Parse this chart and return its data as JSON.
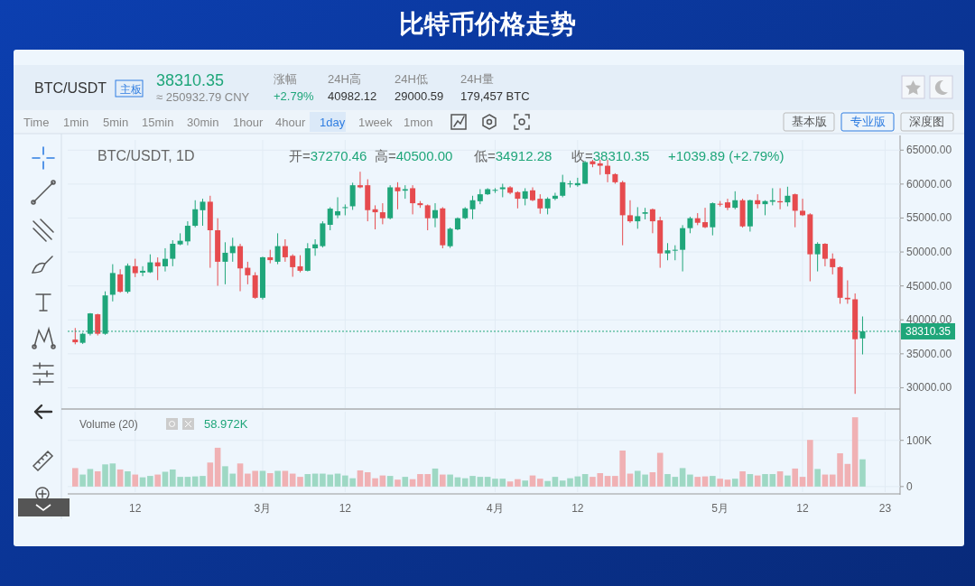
{
  "chart_data": [
    {
      "type": "candlestick",
      "title": "比特币价格走势",
      "annotations": [
        "BTC/USDT",
        "主板",
        "38310.35",
        "≈ 250932.79 CNY",
        "涨幅",
        "+2.79%",
        "24H高",
        "40982.12",
        "24H低",
        "29000.59",
        "24H量",
        "179,457 BTC",
        "Time",
        "1min",
        "5min",
        "15min",
        "30min",
        "1hour",
        "4hour",
        "1day",
        "1week",
        "1mon",
        "基本版",
        "专业版",
        "深度图",
        "BTC/USDT, 1D",
        "开=37270.46",
        "高=40500.00",
        "低=34912.28",
        "收=38310.35",
        "+1039.89 (+2.79%)"
      ],
      "x": [
        "--02-04",
        "--02-05",
        "--02-06",
        "--02-07",
        "--02-08",
        "--02-09",
        "--02-10",
        "--02-11",
        "--02-12",
        "--02-13",
        "--02-14",
        "--02-15",
        "--02-16",
        "--02-17",
        "--02-18",
        "--02-19",
        "--02-20",
        "--02-21",
        "--02-22",
        "--02-23",
        "--02-24",
        "--02-25",
        "--02-26",
        "--02-27",
        "--02-28",
        "--03-01",
        "--03-02",
        "--03-03",
        "--03-04",
        "--03-05",
        "--03-06",
        "--03-07",
        "--03-08",
        "--03-09",
        "--03-10",
        "--03-11",
        "--03-12",
        "--03-13",
        "--03-14",
        "--03-15",
        "--03-16",
        "--03-17",
        "--03-18",
        "--03-19",
        "--03-20",
        "--03-21",
        "--03-22",
        "--03-23",
        "--03-24",
        "--03-25",
        "--03-26",
        "--03-27",
        "--03-28",
        "--03-29",
        "--03-30",
        "--03-31",
        "--04-01",
        "--04-02",
        "--04-03",
        "--04-04",
        "--04-05",
        "--04-06",
        "--04-07",
        "--04-08",
        "--04-09",
        "--04-10",
        "--04-11",
        "--04-12",
        "--04-13",
        "--04-14",
        "--04-15",
        "--04-16",
        "--04-17",
        "--04-18",
        "--04-19",
        "--04-20",
        "--04-21",
        "--04-22",
        "--04-23",
        "--04-24",
        "--04-25",
        "--04-26",
        "--04-27",
        "--04-28",
        "--04-29",
        "--04-30",
        "--05-01",
        "--05-02",
        "--05-03",
        "--05-04",
        "--05-05",
        "--05-06",
        "--05-07",
        "--05-08",
        "--05-09",
        "--05-10",
        "--05-11",
        "--05-12",
        "--05-13",
        "--05-14",
        "--05-15",
        "--05-16",
        "--05-17",
        "--05-18",
        "--05-19",
        "--05-20"
      ],
      "ohlc": [
        [
          37100,
          38800,
          36400,
          36700
        ],
        [
          36620,
          38100,
          36450,
          37950
        ],
        [
          37950,
          41000,
          37700,
          40950
        ],
        [
          40820,
          40900,
          37700,
          37950
        ],
        [
          37950,
          44200,
          37800,
          43600
        ],
        [
          43700,
          48200,
          42720,
          46900
        ],
        [
          46700,
          47450,
          44000,
          44140
        ],
        [
          44140,
          48300,
          43900,
          47980
        ],
        [
          47900,
          49000,
          46300,
          46880
        ],
        [
          46960,
          47900,
          46430,
          47230
        ],
        [
          47010,
          49650,
          46900,
          48470
        ],
        [
          48470,
          49200,
          45850,
          47890
        ],
        [
          47890,
          50550,
          47130,
          48990
        ],
        [
          49000,
          51730,
          47900,
          51210
        ],
        [
          51120,
          52750,
          50990,
          51650
        ],
        [
          51560,
          54520,
          50990,
          53860
        ],
        [
          53860,
          57620,
          53640,
          56290
        ],
        [
          56150,
          57840,
          53860,
          57400
        ],
        [
          57400,
          58280,
          47670,
          53200
        ],
        [
          53200,
          54970,
          45020,
          48560
        ],
        [
          48560,
          51430,
          45240,
          49880
        ],
        [
          49830,
          52100,
          48560,
          50860
        ],
        [
          50860,
          51210,
          44220,
          47580
        ],
        [
          47670,
          48560,
          45240,
          46570
        ],
        [
          46570,
          47010,
          43100,
          43250
        ],
        [
          43250,
          49300,
          43000,
          49220
        ],
        [
          49220,
          50320,
          48330,
          48800
        ],
        [
          48560,
          52750,
          48200,
          50860
        ],
        [
          50860,
          51870,
          48560,
          49220
        ],
        [
          49440,
          49660,
          46350,
          47760
        ],
        [
          47890,
          49520,
          47000,
          47230
        ],
        [
          47230,
          51300,
          47140,
          50540
        ],
        [
          50540,
          51870,
          49440,
          51120
        ],
        [
          50860,
          54520,
          50660,
          54210
        ],
        [
          54000,
          56600,
          53200,
          56380
        ],
        [
          55400,
          58060,
          54970,
          56000
        ],
        [
          56500,
          57000,
          55400,
          56600
        ],
        [
          56730,
          60200,
          56200,
          59830
        ],
        [
          59830,
          61820,
          59390,
          59520
        ],
        [
          59830,
          60710,
          54520,
          56160
        ],
        [
          56290,
          56870,
          53330,
          55850
        ],
        [
          55850,
          57180,
          54080,
          54970
        ],
        [
          54970,
          59830,
          54800,
          59520
        ],
        [
          59520,
          60270,
          56290,
          58940
        ],
        [
          59030,
          59830,
          57840,
          59250
        ],
        [
          59390,
          59830,
          55540,
          57180
        ],
        [
          57180,
          57500,
          56500,
          56900
        ],
        [
          56870,
          57000,
          53200,
          54970
        ],
        [
          54970,
          57180,
          53640,
          56160
        ],
        [
          56420,
          56600,
          50540,
          50990
        ],
        [
          50850,
          53600,
          50600,
          53420
        ],
        [
          53330,
          55100,
          53200,
          54970
        ],
        [
          54970,
          56600,
          54830,
          56420
        ],
        [
          56290,
          58280,
          54830,
          57620
        ],
        [
          57480,
          59250,
          57040,
          58500
        ],
        [
          58500,
          59400,
          58400,
          59250
        ],
        [
          59080,
          59400,
          58700,
          59150
        ],
        [
          59250,
          60050,
          58060,
          59520
        ],
        [
          59520,
          59700,
          58500,
          58720
        ],
        [
          58810,
          58940,
          56420,
          57840
        ],
        [
          57840,
          59390,
          56870,
          58940
        ],
        [
          59080,
          59520,
          57480,
          57620
        ],
        [
          57840,
          58500,
          55630,
          56420
        ],
        [
          56420,
          58060,
          55540,
          57840
        ],
        [
          57840,
          58720,
          57620,
          58280
        ],
        [
          58280,
          61370,
          58060,
          60270
        ],
        [
          59960,
          60500,
          59500,
          60100
        ],
        [
          59830,
          60930,
          59610,
          60140
        ],
        [
          60050,
          63400,
          60000,
          63230
        ],
        [
          63360,
          63580,
          62480,
          62920
        ],
        [
          63050,
          63580,
          61370,
          62700
        ],
        [
          62700,
          63580,
          60270,
          61460
        ],
        [
          61460,
          61600,
          60050,
          60270
        ],
        [
          60270,
          60490,
          50990,
          55410
        ],
        [
          55410,
          57620,
          54300,
          54520
        ],
        [
          54520,
          56600,
          53420,
          55270
        ],
        [
          55630,
          56500,
          54800,
          55850
        ],
        [
          56290,
          56400,
          52760,
          54520
        ],
        [
          54660,
          55190,
          47670,
          49790
        ],
        [
          49790,
          51300,
          48780,
          50240
        ],
        [
          50190,
          50990,
          48780,
          50320
        ],
        [
          50320,
          53950,
          47140,
          53510
        ],
        [
          53510,
          55190,
          52760,
          54970
        ],
        [
          54970,
          55720,
          53950,
          54300
        ],
        [
          54390,
          56510,
          53510,
          53640
        ],
        [
          53640,
          57300,
          52450,
          57180
        ],
        [
          57100,
          57500,
          56700,
          57050
        ],
        [
          57310,
          57840,
          56160,
          56510
        ],
        [
          56510,
          58940,
          56290,
          57620
        ],
        [
          57620,
          57840,
          53600,
          53770
        ],
        [
          53770,
          57700,
          53000,
          57620
        ],
        [
          57620,
          58500,
          56420,
          57040
        ],
        [
          57040,
          57620,
          55410,
          57490
        ],
        [
          57400,
          59390,
          56870,
          57620
        ],
        [
          57480,
          59390,
          56290,
          57310
        ],
        [
          57310,
          59610,
          56730,
          58280
        ],
        [
          58500,
          58600,
          53640,
          56070
        ],
        [
          56070,
          57840,
          55300,
          55410
        ],
        [
          55540,
          55700,
          45680,
          49660
        ],
        [
          49660,
          51430,
          47140,
          51200
        ],
        [
          51200,
          51300,
          47890,
          49000
        ],
        [
          49000,
          49790,
          46700,
          47760
        ],
        [
          47760,
          47890,
          42370,
          43250
        ],
        [
          43250,
          45820,
          42370,
          43030
        ],
        [
          43030,
          43890,
          29100,
          37150
        ],
        [
          37270.46,
          40500,
          34912.28,
          38310.35
        ]
      ],
      "xticks": [
        {
          "value": "--02-12",
          "label": null
        },
        {
          "value": "--03-01",
          "label": null
        },
        {
          "value": "--03-12",
          "label": null
        },
        {
          "value": "--04-01",
          "label": null
        },
        {
          "value": "--04-12",
          "label": null
        },
        {
          "value": "--05-01",
          "label": null
        },
        {
          "value": "--05-12",
          "label": null
        },
        {
          "value": "--05-23",
          "label": null
        }
      ],
      "colors": [
        "#e64b4e",
        "#1fa67a",
        "#1fa67a",
        "#e64b4e",
        "#1fa67a",
        "#1fa67a",
        "#e64b4e",
        "#1fa67a",
        "#e64b4e",
        "#1fa67a",
        "#1fa67a",
        "#e64b4e",
        "#1fa67a",
        "#1fa67a",
        "#1fa67a",
        "#1fa67a",
        "#1fa67a",
        "#1fa67a",
        "#e64b4e",
        "#e64b4e",
        "#1fa67a",
        "#1fa67a",
        "#e64b4e",
        "#e64b4e",
        "#e64b4e",
        "#1fa67a",
        "#e64b4e",
        "#1fa67a",
        "#e64b4e",
        "#e64b4e",
        "#e64b4e",
        "#1fa67a",
        "#1fa67a",
        "#1fa67a",
        "#1fa67a",
        "#1fa67a",
        "#1fa67a",
        "#1fa67a",
        "#e64b4e",
        "#e64b4e",
        "#e64b4e",
        "#e64b4e",
        "#1fa67a",
        "#e64b4e",
        "#1fa67a",
        "#e64b4e",
        "#e64b4e",
        "#e64b4e",
        "#1fa67a",
        "#e64b4e",
        "#1fa67a",
        "#1fa67a",
        "#1fa67a",
        "#1fa67a",
        "#1fa67a",
        "#1fa67a",
        "#1fa67a",
        "#1fa67a",
        "#e64b4e",
        "#e64b4e",
        "#1fa67a",
        "#e64b4e",
        "#e64b4e",
        "#1fa67a",
        "#1fa67a",
        "#1fa67a",
        "#1fa67a",
        "#1fa67a",
        "#1fa67a",
        "#e64b4e",
        "#e64b4e",
        "#e64b4e",
        "#e64b4e",
        "#e64b4e",
        "#e64b4e",
        "#1fa67a",
        "#1fa67a",
        "#e64b4e",
        "#e64b4e",
        "#1fa67a",
        "#1fa67a",
        "#1fa67a",
        "#1fa67a",
        "#e64b4e",
        "#e64b4e",
        "#1fa67a",
        "#e64b4e",
        "#e64b4e",
        "#1fa67a",
        "#e64b4e",
        "#1fa67a",
        "#e64b4e",
        "#1fa67a",
        "#1fa67a",
        "#e64b4e",
        "#1fa67a",
        "#e64b4e",
        "#e64b4e",
        "#e64b4e",
        "#1fa67a",
        "#e64b4e",
        "#e64b4e",
        "#e64b4e",
        "#e64b4e",
        "#e64b4e",
        "#1fa67a"
      ],
      "xlim": [
        "--02-03",
        "--05-25"
      ],
      "ylim": [
        27000,
        66500
      ],
      "yticks": [
        {
          "value": 30000,
          "label": "30000.00"
        },
        {
          "value": 35000,
          "label": "35000.00"
        },
        {
          "value": 40000,
          "label": "40000.00"
        },
        {
          "value": 45000,
          "label": "45000.00"
        },
        {
          "value": 50000,
          "label": "50000.00"
        },
        {
          "value": 55000,
          "label": "55000.00"
        },
        {
          "value": 60000,
          "label": "60000.00"
        },
        {
          "value": 65000,
          "label": "65000.00"
        }
      ],
      "ref_lines": [
        {
          "axis": "y",
          "value": 38310.35,
          "label": "38310.35",
          "color": "#1fa67a",
          "line_style": "dotted"
        }
      ],
      "grid": true,
      "tick_labels": "y"
    },
    {
      "type": "bar",
      "title": "Volume (20)",
      "annotations": [
        "58.972K"
      ],
      "x": [
        "--02-04",
        "--02-05",
        "--02-06",
        "--02-07",
        "--02-08",
        "--02-09",
        "--02-10",
        "--02-11",
        "--02-12",
        "--02-13",
        "--02-14",
        "--02-15",
        "--02-16",
        "--02-17",
        "--02-18",
        "--02-19",
        "--02-20",
        "--02-21",
        "--02-22",
        "--02-23",
        "--02-24",
        "--02-25",
        "--02-26",
        "--02-27",
        "--02-28",
        "--03-01",
        "--03-02",
        "--03-03",
        "--03-04",
        "--03-05",
        "--03-06",
        "--03-07",
        "--03-08",
        "--03-09",
        "--03-10",
        "--03-11",
        "--03-12",
        "--03-13",
        "--03-14",
        "--03-15",
        "--03-16",
        "--03-17",
        "--03-18",
        "--03-19",
        "--03-20",
        "--03-21",
        "--03-22",
        "--03-23",
        "--03-24",
        "--03-25",
        "--03-26",
        "--03-27",
        "--03-28",
        "--03-29",
        "--03-30",
        "--03-31",
        "--04-01",
        "--04-02",
        "--04-03",
        "--04-04",
        "--04-05",
        "--04-06",
        "--04-07",
        "--04-08",
        "--04-09",
        "--04-10",
        "--04-11",
        "--04-12",
        "--04-13",
        "--04-14",
        "--04-15",
        "--04-16",
        "--04-17",
        "--04-18",
        "--04-19",
        "--04-20",
        "--04-21",
        "--04-22",
        "--04-23",
        "--04-24",
        "--04-25",
        "--04-26",
        "--04-27",
        "--04-28",
        "--04-29",
        "--04-30",
        "--05-01",
        "--05-02",
        "--05-03",
        "--05-04",
        "--05-05",
        "--05-06",
        "--05-07",
        "--05-08",
        "--05-09",
        "--05-10",
        "--05-11",
        "--05-12",
        "--05-13",
        "--05-14",
        "--05-15",
        "--05-16",
        "--05-17",
        "--05-18",
        "--05-19",
        "--05-20"
      ],
      "values": [
        40,
        26,
        38,
        33,
        48,
        50,
        37,
        33,
        26,
        20,
        23,
        26,
        32,
        37,
        21,
        21,
        22,
        23,
        52,
        84,
        44,
        28,
        50,
        28,
        34,
        34,
        29,
        34,
        34,
        28,
        21,
        27,
        28,
        28,
        26,
        28,
        24,
        18,
        35,
        31,
        18,
        24,
        23,
        15,
        21,
        16,
        27,
        27,
        39,
        26,
        26,
        20,
        18,
        23,
        21,
        21,
        17,
        17,
        11,
        16,
        13,
        24,
        17,
        12,
        21,
        13,
        18,
        22,
        27,
        21,
        29,
        23,
        23,
        78,
        28,
        34,
        26,
        31,
        73,
        27,
        21,
        40,
        26,
        21,
        22,
        23,
        17,
        15,
        17,
        33,
        27,
        24,
        27,
        27,
        33,
        24,
        39,
        21,
        101,
        38,
        26,
        26,
        72,
        49,
        150,
        59
      ],
      "colors": [
        "#f0b1b4",
        "#9ed8c4",
        "#9ed8c4",
        "#f0b1b4",
        "#9ed8c4",
        "#9ed8c4",
        "#f0b1b4",
        "#9ed8c4",
        "#f0b1b4",
        "#9ed8c4",
        "#9ed8c4",
        "#f0b1b4",
        "#9ed8c4",
        "#9ed8c4",
        "#9ed8c4",
        "#9ed8c4",
        "#9ed8c4",
        "#9ed8c4",
        "#f0b1b4",
        "#f0b1b4",
        "#9ed8c4",
        "#9ed8c4",
        "#f0b1b4",
        "#f0b1b4",
        "#f0b1b4",
        "#9ed8c4",
        "#f0b1b4",
        "#9ed8c4",
        "#f0b1b4",
        "#f0b1b4",
        "#f0b1b4",
        "#9ed8c4",
        "#9ed8c4",
        "#9ed8c4",
        "#9ed8c4",
        "#9ed8c4",
        "#9ed8c4",
        "#9ed8c4",
        "#f0b1b4",
        "#f0b1b4",
        "#f0b1b4",
        "#f0b1b4",
        "#9ed8c4",
        "#f0b1b4",
        "#9ed8c4",
        "#f0b1b4",
        "#f0b1b4",
        "#f0b1b4",
        "#9ed8c4",
        "#f0b1b4",
        "#9ed8c4",
        "#9ed8c4",
        "#9ed8c4",
        "#9ed8c4",
        "#9ed8c4",
        "#9ed8c4",
        "#9ed8c4",
        "#9ed8c4",
        "#f0b1b4",
        "#f0b1b4",
        "#9ed8c4",
        "#f0b1b4",
        "#f0b1b4",
        "#9ed8c4",
        "#9ed8c4",
        "#9ed8c4",
        "#9ed8c4",
        "#9ed8c4",
        "#9ed8c4",
        "#f0b1b4",
        "#f0b1b4",
        "#f0b1b4",
        "#f0b1b4",
        "#f0b1b4",
        "#f0b1b4",
        "#9ed8c4",
        "#9ed8c4",
        "#f0b1b4",
        "#f0b1b4",
        "#9ed8c4",
        "#9ed8c4",
        "#9ed8c4",
        "#9ed8c4",
        "#f0b1b4",
        "#f0b1b4",
        "#9ed8c4",
        "#f0b1b4",
        "#f0b1b4",
        "#9ed8c4",
        "#f0b1b4",
        "#9ed8c4",
        "#f0b1b4",
        "#9ed8c4",
        "#9ed8c4",
        "#f0b1b4",
        "#9ed8c4",
        "#f0b1b4",
        "#f0b1b4",
        "#f0b1b4",
        "#9ed8c4",
        "#f0b1b4",
        "#f0b1b4",
        "#f0b1b4",
        "#f0b1b4",
        "#f0b1b4",
        "#9ed8c4"
      ],
      "xlim": [
        "--02-03",
        "--05-25"
      ],
      "xticks": [
        {
          "value": "--02-12",
          "label": "12"
        },
        {
          "value": "--03-01",
          "label": "3月"
        },
        {
          "value": "--03-12",
          "label": "12"
        },
        {
          "value": "--04-01",
          "label": "4月"
        },
        {
          "value": "--04-12",
          "label": "12"
        },
        {
          "value": "--05-01",
          "label": "5月"
        },
        {
          "value": "--05-12",
          "label": "12"
        },
        {
          "value": "--05-23",
          "label": "23"
        }
      ],
      "ylim": [
        -12,
        162
      ],
      "yticks": [
        0,
        {
          "value": 100,
          "label": "100K"
        }
      ],
      "grid": true
    }
  ]
}
